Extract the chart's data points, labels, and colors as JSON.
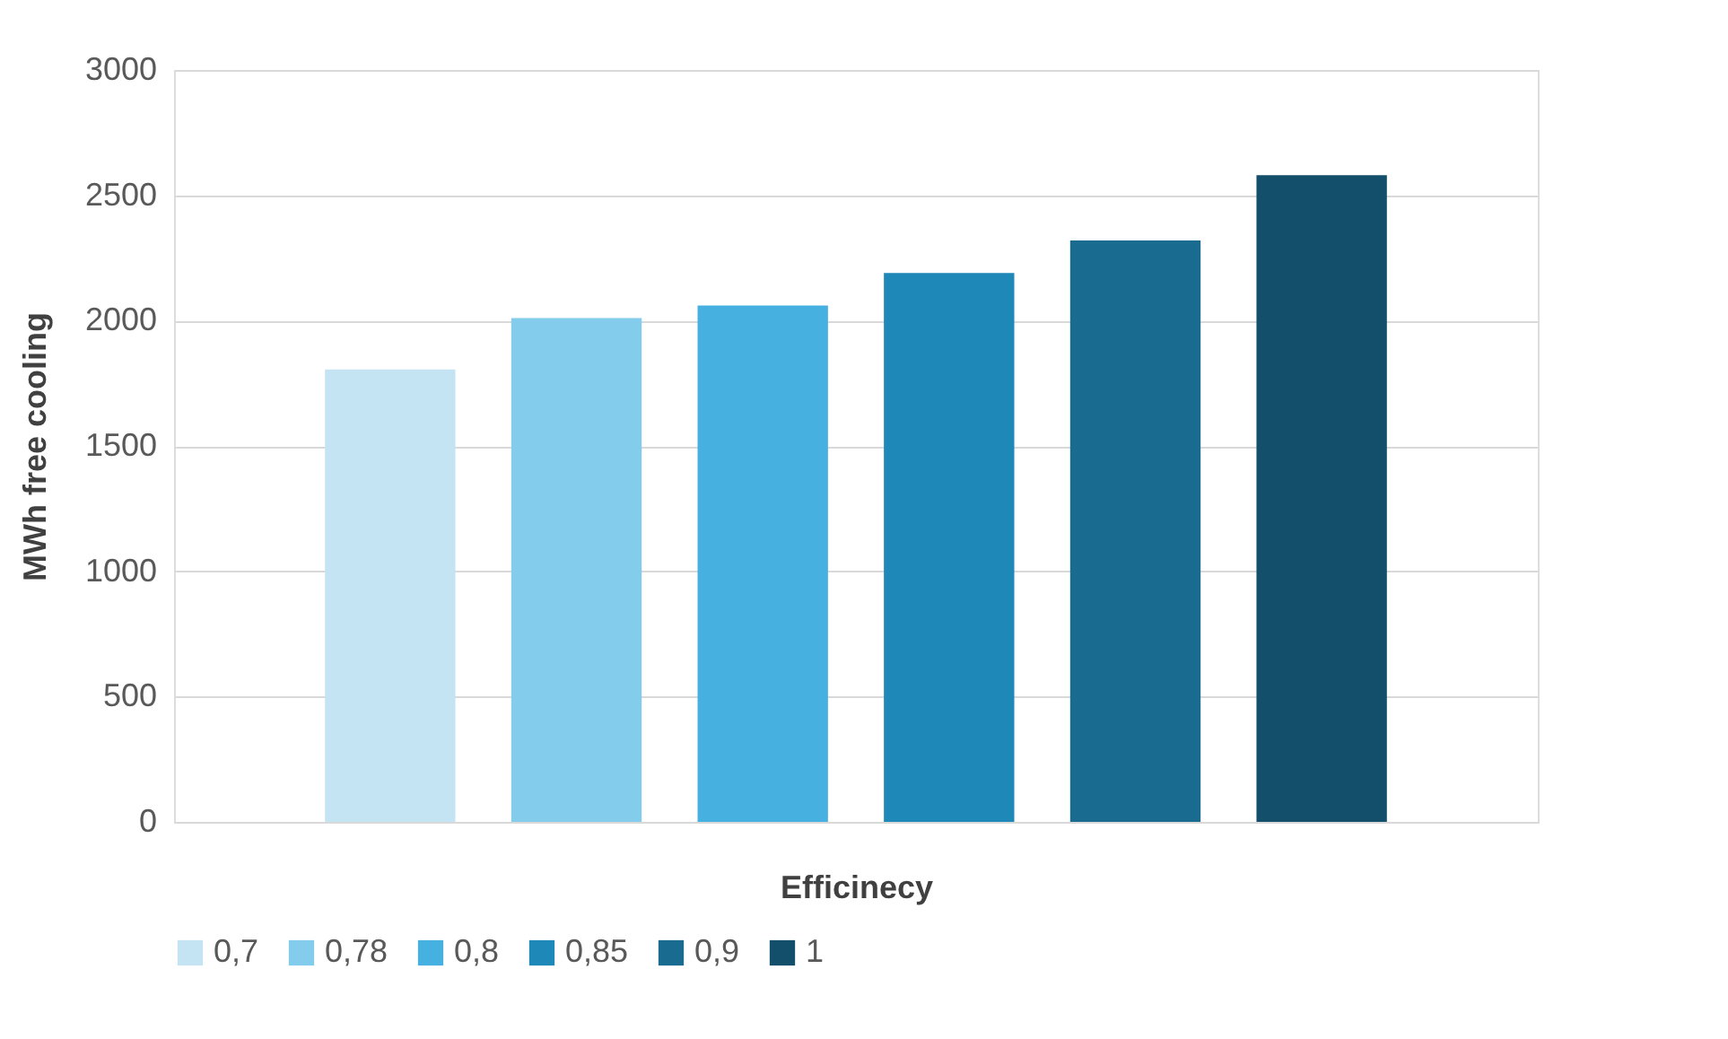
{
  "chart_data": {
    "type": "bar",
    "xlabel": "Efficinecy",
    "ylabel": "MWh free cooling",
    "categories": [
      null
    ],
    "series": [
      {
        "name": "0,7",
        "color": "#c5e4f3",
        "values": [
          1805
        ]
      },
      {
        "name": "0,78",
        "color": "#83cceb",
        "values": [
          2010
        ]
      },
      {
        "name": "0,8",
        "color": "#46b1e1",
        "values": [
          2060
        ]
      },
      {
        "name": "0,85",
        "color": "#1e88b8",
        "values": [
          2190
        ]
      },
      {
        "name": "0,9",
        "color": "#196b8f",
        "values": [
          2320
        ]
      },
      {
        "name": "1",
        "color": "#134f6b",
        "values": [
          2580
        ]
      }
    ],
    "ylim": [
      0,
      3000
    ],
    "yticks": [
      0,
      500,
      1000,
      1500,
      2000,
      2500,
      3000
    ],
    "grid": "y",
    "legend": "bottom"
  }
}
